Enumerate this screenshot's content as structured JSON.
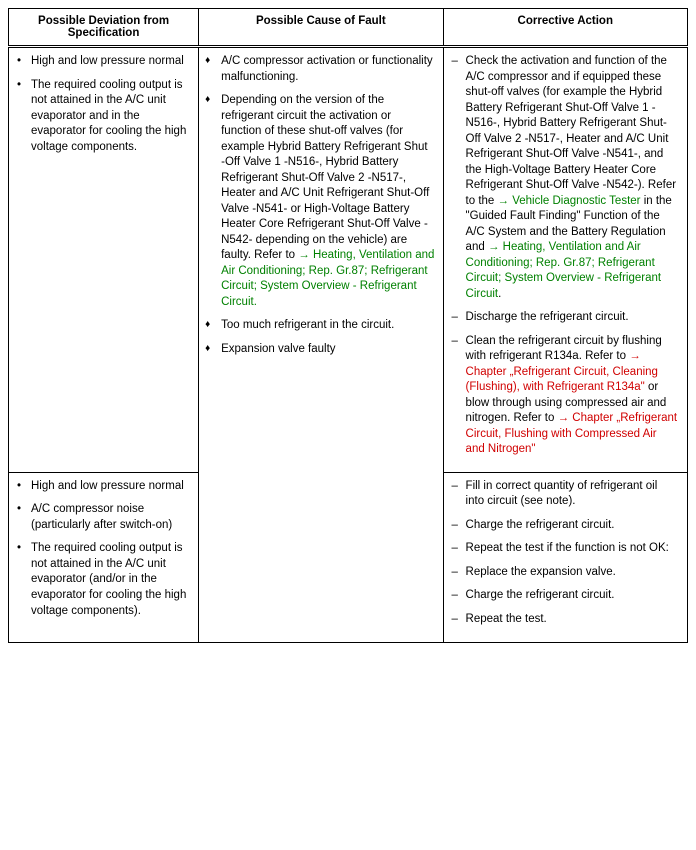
{
  "headers": {
    "col1": "Possible Deviation from Specification",
    "col2": "Possible Cause of Fault",
    "col3": "Corrective Action"
  },
  "row1": {
    "deviation": {
      "item1": "High and low pressure normal",
      "item2": "The required cooling output is not attained in the A/C unit evaporator and in the evaporator for cooling the high voltage components."
    },
    "cause": {
      "item1": "A/C compressor activation or functionality malfunctioning.",
      "item2_pre": "Depending on the version of the refrigerant circuit the activation or function of these shut-off valves (for example Hybrid Battery Refrigerant Shut -Off Valve 1 -N516-, Hybrid Battery Refrigerant Shut-Off Valve 2 -N517-, Heater and A/C Unit Refrigerant Shut-Off Valve -N541- or High-Voltage Battery Heater Core Refrigerant Shut-Off Valve -N542- depending on the vehicle) are faulty. Refer to ",
      "item2_link": "→ Heating, Ventilation and Air Conditioning; Rep. Gr.87; Refrigerant Circuit; System Overview - Refrigerant Circuit.",
      "item3": "Too much refrigerant in the circuit.",
      "item4": "Expansion valve faulty"
    },
    "action": {
      "item1_pre": "Check the activation and function of the A/C compressor and if equipped these shut-off valves (for example the Hybrid Battery Refrigerant Shut-Off Valve 1 -N516-, Hybrid Battery Refrigerant Shut-Off Valve 2 -N517-, Heater and A/C Unit Refrigerant Shut-Off Valve -N541-, and the High-Voltage Battery Heater Core Refrigerant Shut-Off Valve -N542-). Refer to the ",
      "item1_link1": "→ Vehicle Diagnostic Tester",
      "item1_mid": " in the \"Guided Fault Finding\" Function of the A/C System and the Battery Regulation and ",
      "item1_link2": "→ Heating, Ventilation and Air Conditioning; Rep. Gr.87; Refrigerant Circuit; System Overview - Refrigerant Circuit",
      "item1_post": ".",
      "item2": "Discharge the refrigerant circuit.",
      "item3_pre": "Clean the refrigerant circuit by flushing with refrigerant R134a. Refer to ",
      "item3_link1": "→ Chapter „Refrigerant Circuit, Cleaning (Flushing), with Refrigerant R134a\"",
      "item3_mid": " or blow through using compressed air and nitrogen. Refer to ",
      "item3_link2": "→ Chapter „Refrigerant Circuit, Flushing with Compressed Air and Nitrogen\""
    }
  },
  "row2": {
    "deviation": {
      "item1": "High and low pressure normal",
      "item2": "A/C compressor noise (particularly after switch-on)",
      "item3": "The required cooling output is not attained in the A/C unit evaporator (and/or in the evaporator for cooling the high voltage components)."
    },
    "action": {
      "item1": "Fill in correct quantity of refrigerant oil into circuit (see note).",
      "item2": "Charge the refrigerant circuit.",
      "item3": "Repeat the test if the function is not OK:",
      "item4": "Replace the expansion valve.",
      "item5": "Charge the refrigerant circuit.",
      "item6": "Repeat the test."
    }
  }
}
